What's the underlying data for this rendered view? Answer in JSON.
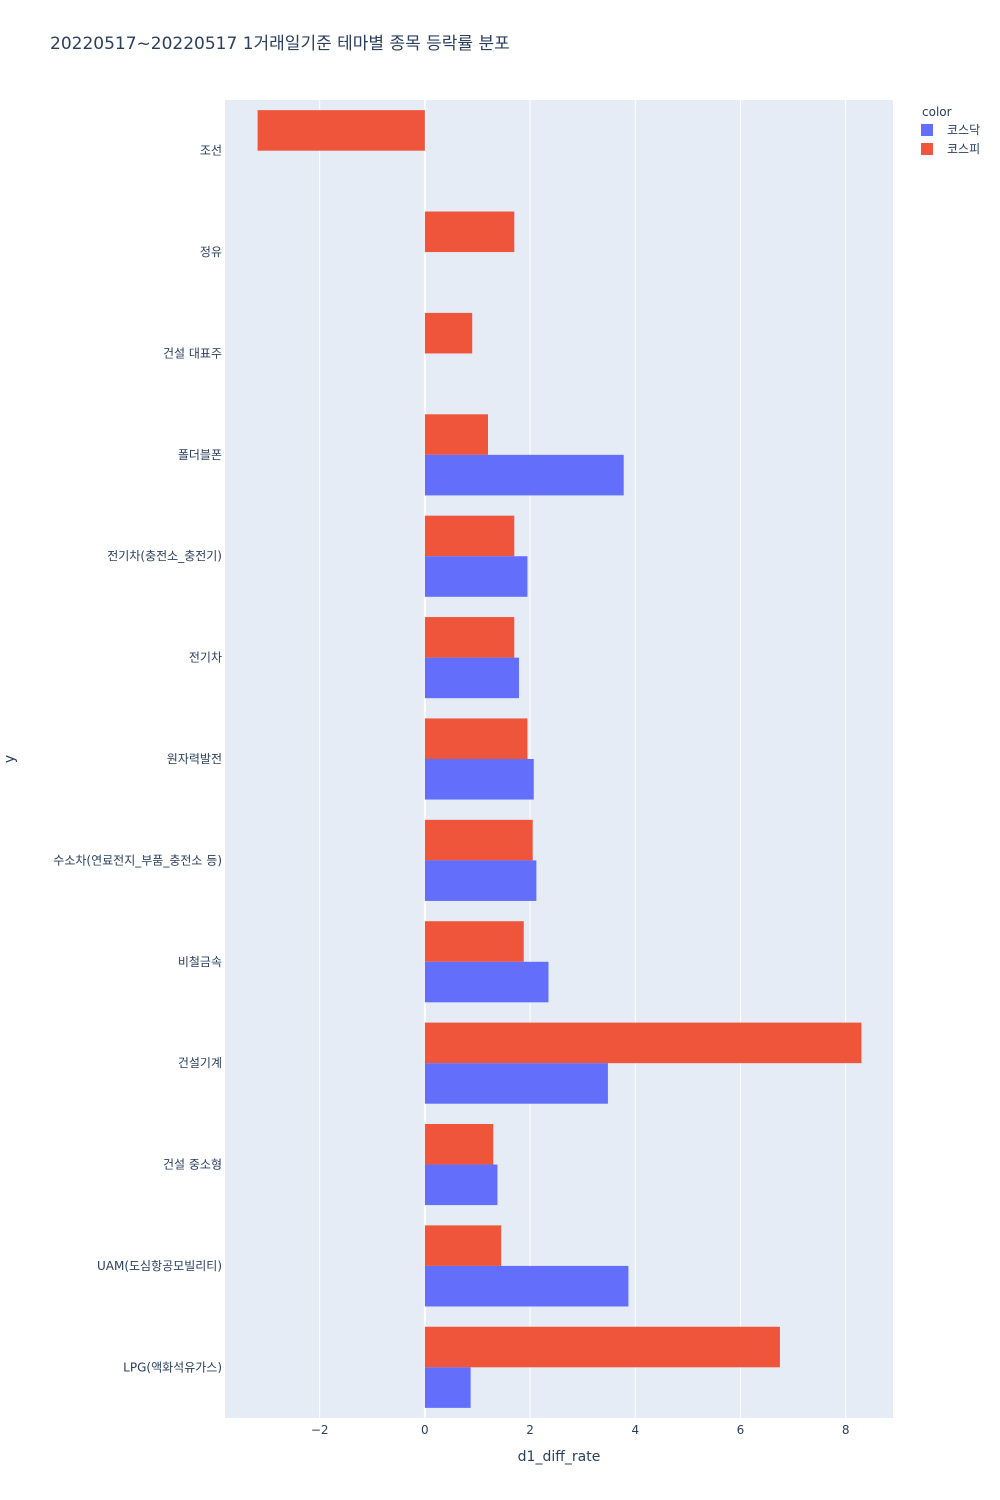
{
  "chart_data": {
    "type": "bar",
    "orientation": "horizontal",
    "title": "20220517~20220517 1거래일기준 테마별 종목 등락률 분포",
    "xlabel": "d1_diff_rate",
    "ylabel": "y",
    "xlim": [
      -3.8,
      8.9
    ],
    "x_ticks": [
      -2,
      0,
      2,
      4,
      6,
      8
    ],
    "x_tick_labels": [
      "−2",
      "0",
      "2",
      "4",
      "6",
      "8"
    ],
    "grid": true,
    "legend": {
      "title": "color",
      "position": "top-right"
    },
    "categories": [
      "조선",
      "정유",
      "건설 대표주",
      "폴더블폰",
      "전기차(충전소_충전기)",
      "전기차",
      "원자력발전",
      "수소차(연료전지_부품_충전소 등)",
      "비철금속",
      "건설기계",
      "건설 중소형",
      "UAM(도심항공모빌리티)",
      "LPG(액화석유가스)"
    ],
    "series": [
      {
        "name": "코스닥",
        "color": "#636efa",
        "values": [
          null,
          null,
          null,
          3.78,
          1.95,
          1.79,
          2.07,
          2.12,
          2.35,
          3.48,
          1.38,
          3.87,
          0.87
        ]
      },
      {
        "name": "코스피",
        "color": "#ef553b",
        "values": [
          -3.18,
          1.7,
          0.9,
          1.2,
          1.7,
          1.7,
          1.95,
          2.05,
          1.88,
          8.3,
          1.3,
          1.45,
          6.75
        ]
      }
    ]
  }
}
